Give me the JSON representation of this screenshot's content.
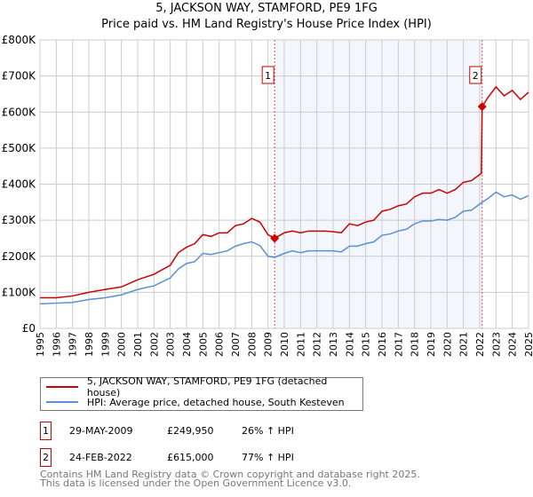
{
  "title": "5, JACKSON WAY, STAMFORD, PE9 1FG",
  "subtitle": "Price paid vs. HM Land Registry's House Price Index (HPI)",
  "chart_data": {
    "type": "line",
    "xlim": [
      1995,
      2025
    ],
    "ylim": [
      0,
      800000
    ],
    "x_ticks": [
      "1995",
      "1996",
      "1997",
      "1998",
      "1999",
      "2000",
      "2001",
      "2002",
      "2003",
      "2004",
      "2005",
      "2006",
      "2007",
      "2008",
      "2009",
      "2010",
      "2011",
      "2012",
      "2013",
      "2014",
      "2015",
      "2016",
      "2017",
      "2018",
      "2019",
      "2020",
      "2021",
      "2022",
      "2023",
      "2024",
      "2025"
    ],
    "y_ticks": [
      {
        "v": 0,
        "label": "£0"
      },
      {
        "v": 100000,
        "label": "£100K"
      },
      {
        "v": 200000,
        "label": "£200K"
      },
      {
        "v": 300000,
        "label": "£300K"
      },
      {
        "v": 400000,
        "label": "£400K"
      },
      {
        "v": 500000,
        "label": "£500K"
      },
      {
        "v": 600000,
        "label": "£600K"
      },
      {
        "v": 700000,
        "label": "£700K"
      },
      {
        "v": 800000,
        "label": "£800K"
      }
    ],
    "grid": true,
    "shaded_range": [
      2009.41,
      2022.15
    ],
    "series": [
      {
        "name": "5, JACKSON WAY, STAMFORD, PE9 1FG (detached house)",
        "color": "#cc0000",
        "x": [
          1995,
          1996,
          1997,
          1998,
          1999,
          2000,
          2001,
          2002,
          2003,
          2003.5,
          2004,
          2004.5,
          2005,
          2005.5,
          2006,
          2006.5,
          2007,
          2007.5,
          2008,
          2008.5,
          2009,
          2009.41,
          2010,
          2010.5,
          2011,
          2011.5,
          2012,
          2012.5,
          2013,
          2013.5,
          2014,
          2014.5,
          2015,
          2015.5,
          2016,
          2016.5,
          2017,
          2017.5,
          2018,
          2018.5,
          2019,
          2019.5,
          2020,
          2020.5,
          2021,
          2021.5,
          2022.1,
          2022.15,
          2022.5,
          2023,
          2023.5,
          2024,
          2024.5,
          2025
        ],
        "y": [
          85000,
          85000,
          90000,
          100000,
          108000,
          115000,
          135000,
          150000,
          175000,
          210000,
          225000,
          235000,
          260000,
          255000,
          265000,
          265000,
          285000,
          290000,
          305000,
          295000,
          260000,
          249950,
          265000,
          270000,
          265000,
          270000,
          270000,
          270000,
          268000,
          265000,
          290000,
          285000,
          295000,
          300000,
          325000,
          330000,
          340000,
          345000,
          365000,
          375000,
          375000,
          385000,
          375000,
          385000,
          405000,
          410000,
          430000,
          615000,
          640000,
          670000,
          645000,
          660000,
          635000,
          655000
        ]
      },
      {
        "name": "HPI: Average price, detached house, South Kesteven",
        "color": "#5b8fd6",
        "x": [
          1995,
          1996,
          1997,
          1998,
          1999,
          2000,
          2001,
          2002,
          2003,
          2003.5,
          2004,
          2004.5,
          2005,
          2005.5,
          2006,
          2006.5,
          2007,
          2007.5,
          2008,
          2008.5,
          2009,
          2009.41,
          2010,
          2010.5,
          2011,
          2011.5,
          2012,
          2012.5,
          2013,
          2013.5,
          2014,
          2014.5,
          2015,
          2015.5,
          2016,
          2016.5,
          2017,
          2017.5,
          2018,
          2018.5,
          2019,
          2019.5,
          2020,
          2020.5,
          2021,
          2021.5,
          2022.1,
          2022.5,
          2023,
          2023.5,
          2024,
          2024.5,
          2025
        ],
        "y": [
          68000,
          70000,
          72000,
          80000,
          85000,
          93000,
          108000,
          118000,
          140000,
          165000,
          180000,
          185000,
          208000,
          205000,
          210000,
          215000,
          228000,
          235000,
          240000,
          230000,
          200000,
          197000,
          208000,
          215000,
          210000,
          215000,
          215000,
          215000,
          215000,
          212000,
          228000,
          228000,
          235000,
          240000,
          258000,
          262000,
          270000,
          275000,
          290000,
          298000,
          298000,
          302000,
          300000,
          308000,
          325000,
          328000,
          348000,
          360000,
          378000,
          365000,
          370000,
          358000,
          368000
        ]
      }
    ],
    "sales": [
      {
        "label": "1",
        "x": 2009.41,
        "y": 249950,
        "date": "29-MAY-2009",
        "price": "£249,950",
        "hpi": "26% ↑ HPI"
      },
      {
        "label": "2",
        "x": 2022.15,
        "y": 615000,
        "date": "24-FEB-2022",
        "price": "£615,000",
        "hpi": "77% ↑ HPI"
      }
    ]
  },
  "footer": {
    "line1": "Contains HM Land Registry data © Crown copyright and database right 2025.",
    "line2": "This data is licensed under the Open Government Licence v3.0."
  }
}
